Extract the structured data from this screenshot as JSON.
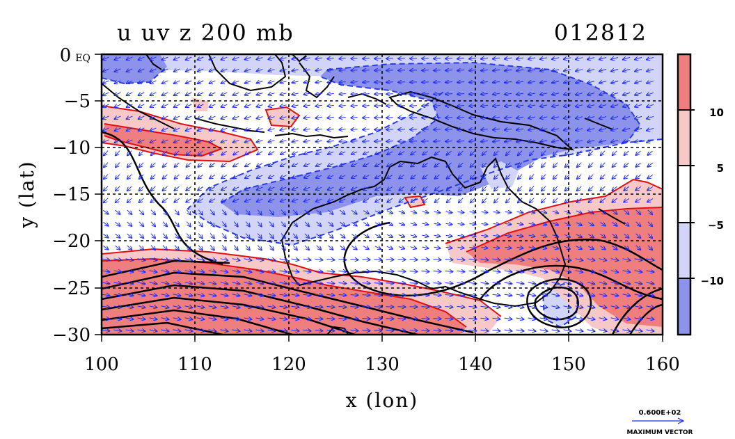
{
  "title": {
    "left": "u uv z 200 mb",
    "right": "012812"
  },
  "axes": {
    "x_label": "x (lon)",
    "y_label": "y (lat)",
    "x_ticks": [
      "100",
      "110",
      "120",
      "130",
      "140",
      "150",
      "160"
    ],
    "y_ticks": [
      "0 EQ",
      "−5",
      "−10",
      "−15",
      "−20",
      "−25",
      "−30"
    ],
    "x_range": [
      100,
      160
    ],
    "y_range": [
      -30,
      0
    ]
  },
  "colorbar": {
    "labels": [
      "10",
      "5",
      "−5",
      "−10"
    ],
    "levels": [
      {
        "range": "above 10",
        "color": "#ef7f7f"
      },
      {
        "range": "5 to 10",
        "color": "#f7c8c8"
      },
      {
        "range": "-5 to 5",
        "color": "#ffffff"
      },
      {
        "range": "-10 to -5",
        "color": "#d2d5f7"
      },
      {
        "range": "below -10",
        "color": "#8d92ea"
      }
    ]
  },
  "vector_key": {
    "value": "0.600E+02",
    "caption": "MAXIMUM VECTOR"
  },
  "colors": {
    "positive_strong": "#ef7f7f",
    "positive_weak": "#f7c8c8",
    "negative_weak": "#d2d5f7",
    "negative_strong": "#8d92ea",
    "positive_contour": "#e01010",
    "negative_contour": "#2a3ce0",
    "vector": "#1c2cf0",
    "height_contour": "#000000"
  }
}
